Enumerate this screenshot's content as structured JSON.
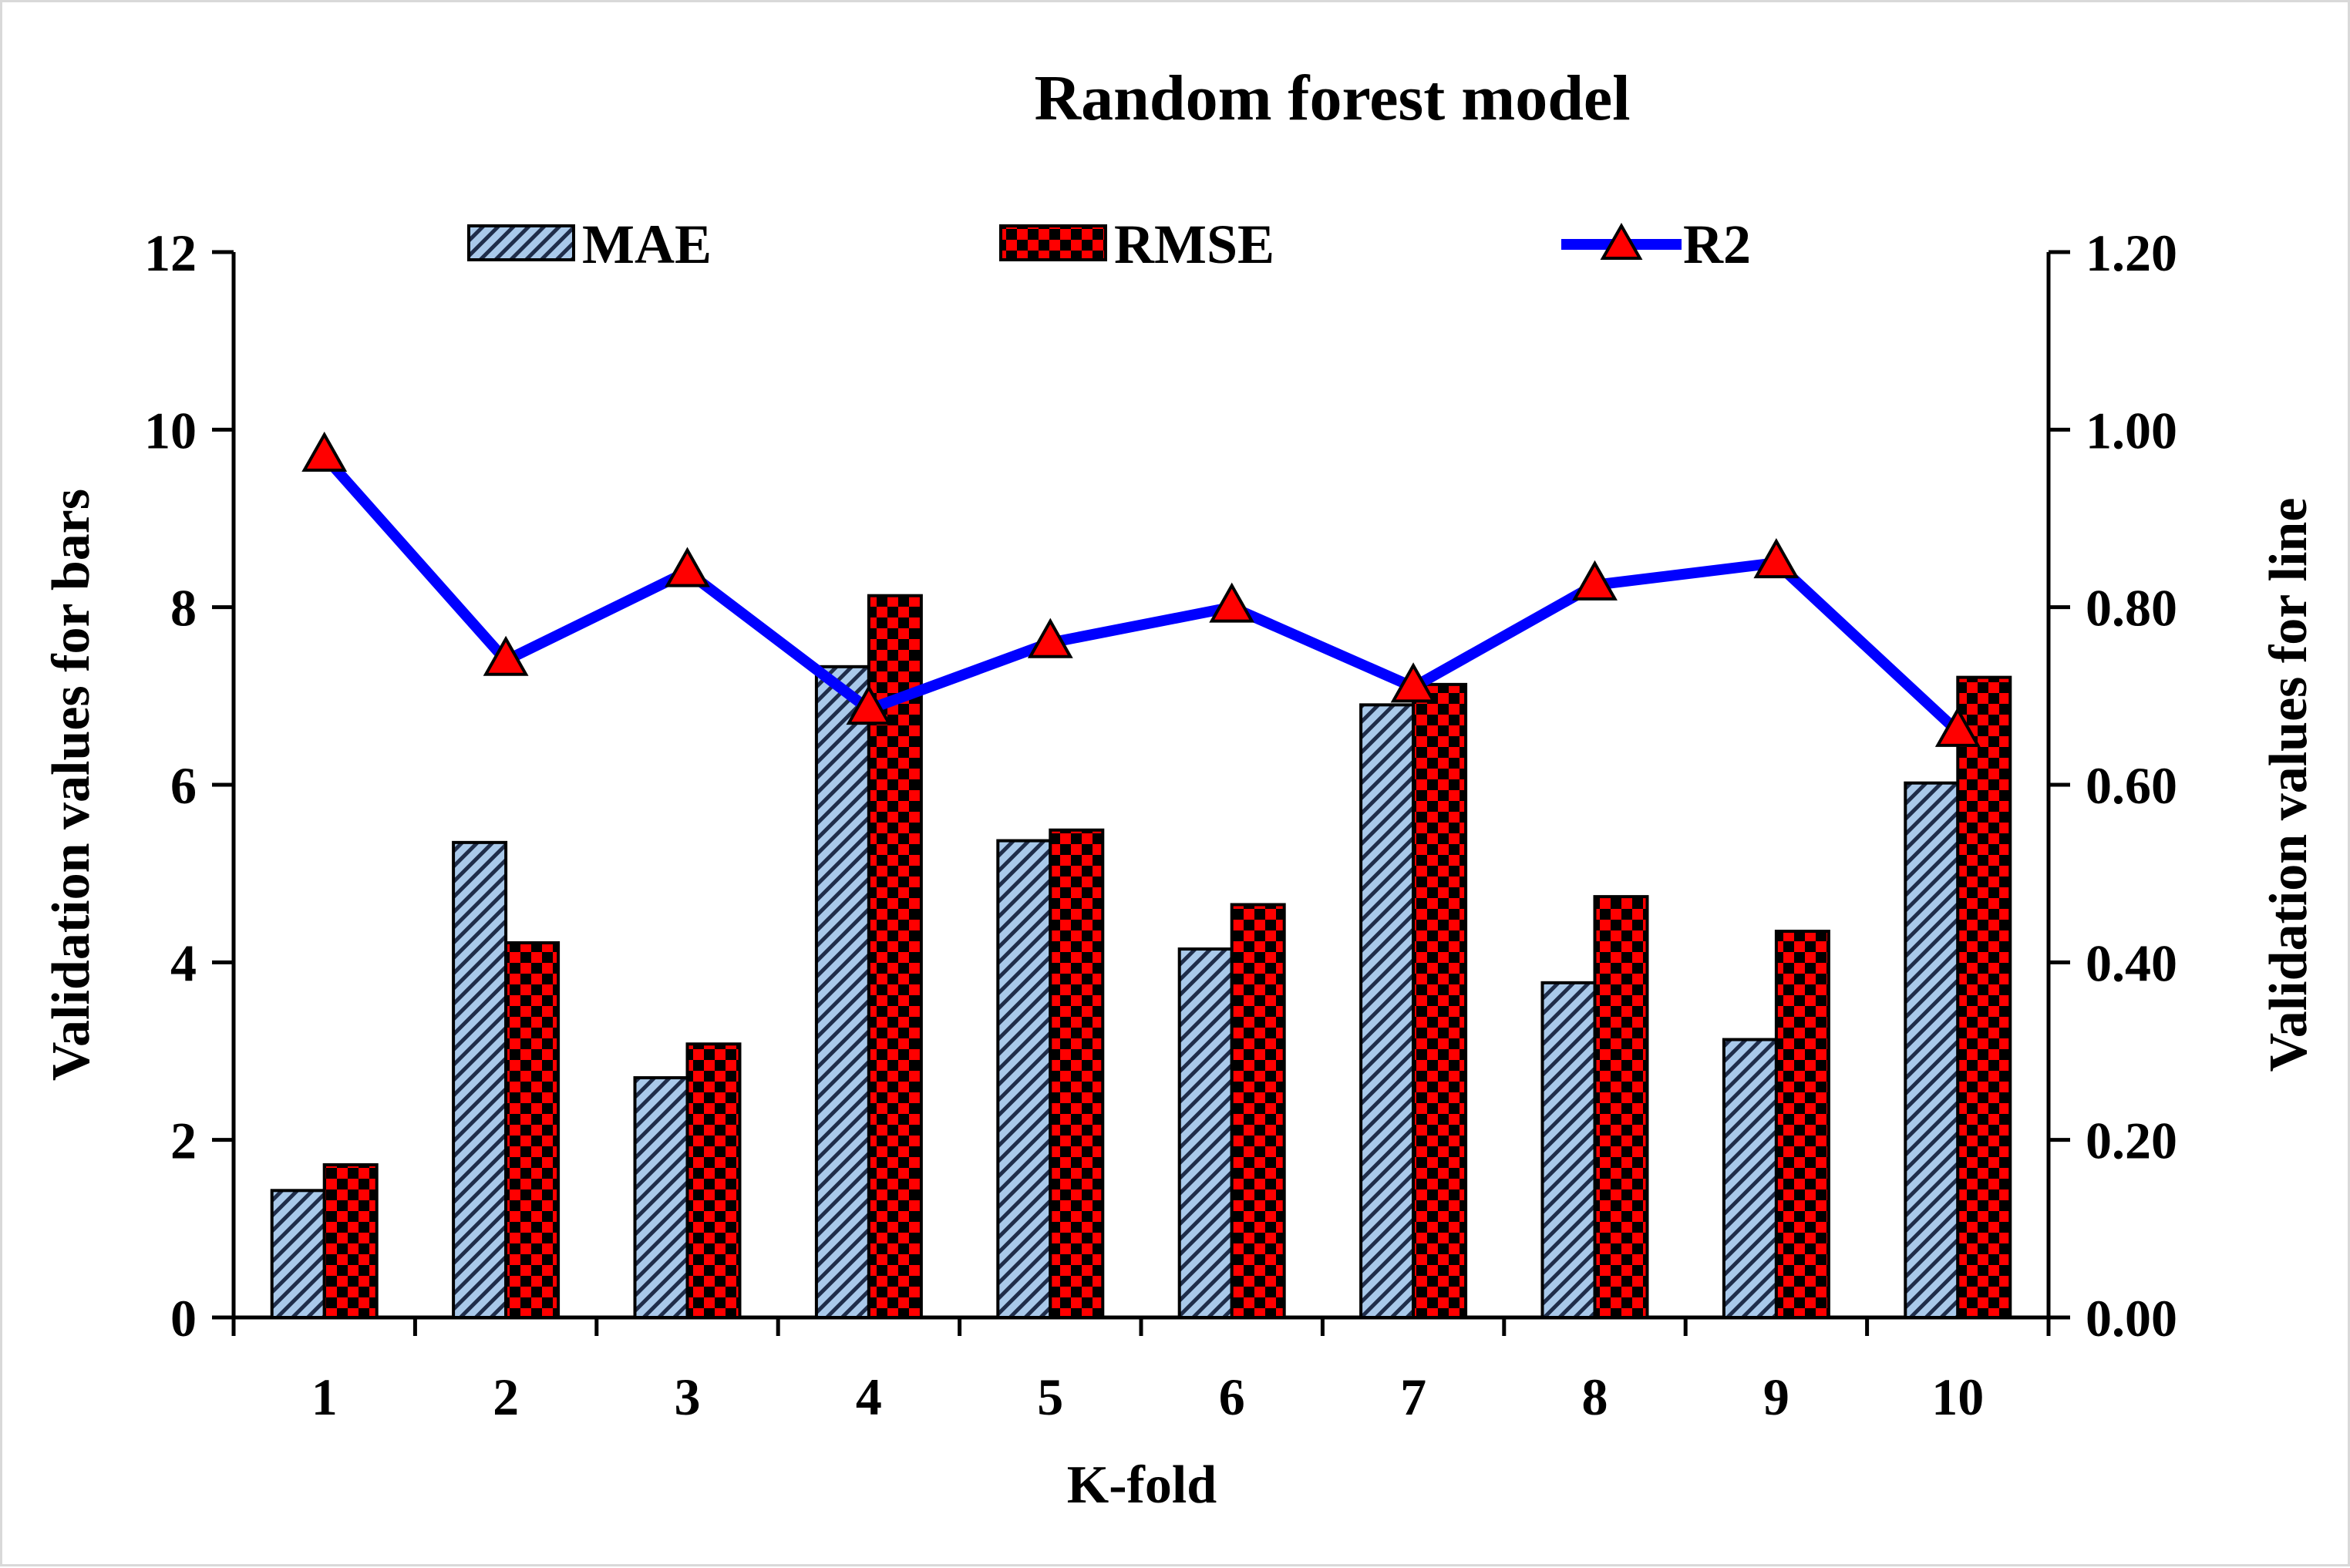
{
  "chart_data": {
    "type": "bar+line",
    "title": "Random forest model",
    "xlabel": "K-fold",
    "ylabel_left": "Validation values for bars",
    "ylabel_right": "Validation values for line",
    "categories": [
      "1",
      "2",
      "3",
      "4",
      "5",
      "6",
      "7",
      "8",
      "9",
      "10"
    ],
    "ylim_left": [
      0,
      12
    ],
    "ylim_right": [
      0,
      1.2
    ],
    "yticks_left": [
      "0",
      "2",
      "4",
      "6",
      "8",
      "10",
      "12"
    ],
    "yticks_right": [
      "0.00",
      "0.20",
      "0.40",
      "0.60",
      "0.80",
      "1.00",
      "1.20"
    ],
    "grid": false,
    "legend_position": "top",
    "series": [
      {
        "name": "MAE",
        "kind": "bar",
        "axis": "left",
        "pattern": "diagonal-hatch",
        "color": "#9dc3e6",
        "values": [
          1.43,
          5.35,
          2.7,
          7.33,
          5.37,
          4.15,
          6.9,
          3.77,
          3.13,
          6.02
        ]
      },
      {
        "name": "RMSE",
        "kind": "bar",
        "axis": "left",
        "pattern": "checkerboard",
        "color": "#ff0000",
        "values": [
          1.72,
          4.22,
          3.08,
          8.13,
          5.49,
          4.65,
          7.13,
          4.74,
          4.35,
          7.21
        ]
      },
      {
        "name": "R2",
        "kind": "line",
        "axis": "right",
        "marker": "triangle",
        "color": "#0000ff",
        "marker_color": "#ff0000",
        "values": [
          0.97,
          0.74,
          0.84,
          0.685,
          0.76,
          0.8,
          0.71,
          0.825,
          0.85,
          0.66
        ]
      }
    ]
  }
}
